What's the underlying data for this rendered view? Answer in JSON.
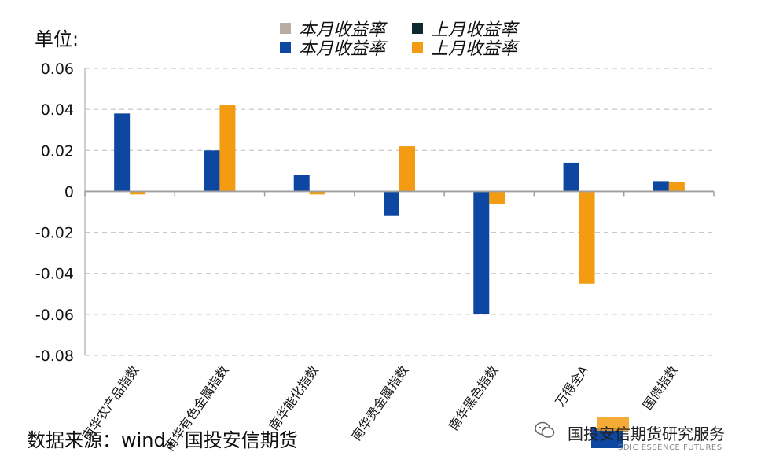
{
  "unit_label": "单位:",
  "source_label": "数据来源：wind，国投安信期货",
  "legend": [
    {
      "label": "本月收益率",
      "color": "#b8aca3"
    },
    {
      "label": "上月收益率",
      "color": "#0d2a33"
    },
    {
      "label": "本月收益率",
      "color": "#0d47a1"
    },
    {
      "label": "上月收益率",
      "color": "#f39c12"
    }
  ],
  "watermark": {
    "text": "国投安信期货研究服务",
    "sub": "SDIC ESSENCE FUTURES"
  },
  "chart_data": {
    "type": "bar",
    "title": "",
    "xlabel": "",
    "ylabel": "单位:",
    "ylim": [
      -0.08,
      0.06
    ],
    "yticks": [
      0.06,
      0.04,
      0.02,
      0,
      -0.02,
      -0.04,
      -0.06,
      -0.08
    ],
    "ytick_labels": [
      "0.06",
      "0.04",
      "0.02",
      "0",
      "-0.02",
      "-0.04",
      "-0.06",
      "-0.08"
    ],
    "grid": true,
    "categories": [
      "南华农产品指数",
      "南华有色金属指数",
      "南华能化指数",
      "南华贵金属指数",
      "南华黑色指数",
      "万得全A",
      "国债指数"
    ],
    "series": [
      {
        "name": "本月收益率",
        "color": "#0d47a1",
        "values": [
          0.038,
          0.02,
          0.008,
          -0.012,
          -0.06,
          0.014,
          0.005
        ]
      },
      {
        "name": "上月收益率",
        "color": "#f39c12",
        "values": [
          -0.0015,
          0.042,
          -0.0015,
          0.022,
          -0.006,
          -0.045,
          0.0045
        ]
      }
    ]
  }
}
